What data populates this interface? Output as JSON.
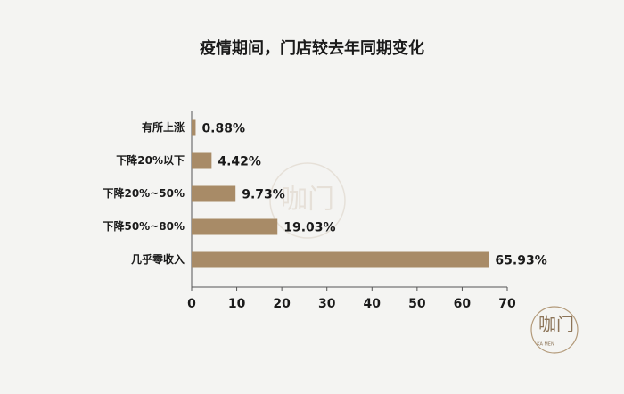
{
  "chart_data": {
    "type": "bar",
    "orientation": "horizontal",
    "title": "疫情期间，门店较去年同期变化",
    "categories": [
      "有所上涨",
      "下降20%以下",
      "下降20%~50%",
      "下降50%~80%",
      "几乎零收入"
    ],
    "values": [
      0.88,
      4.42,
      9.73,
      19.03,
      65.93
    ],
    "value_labels": [
      "0.88%",
      "4.42%",
      "9.73%",
      "19.03%",
      "65.93%"
    ],
    "color": "#a88b67",
    "xlim": [
      0,
      70
    ],
    "xticks": [
      0,
      10,
      20,
      30,
      40,
      50,
      60,
      70
    ]
  },
  "logo": {
    "text": "咖门",
    "subtext": "KA MEN"
  }
}
